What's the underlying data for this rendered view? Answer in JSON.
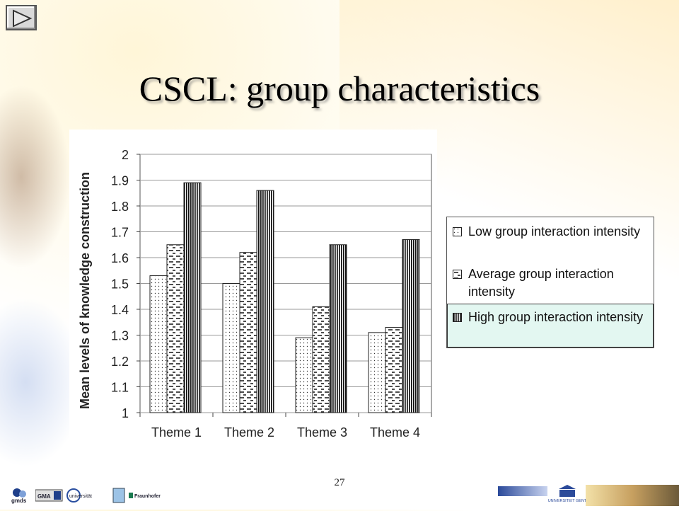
{
  "slide": {
    "title": "CSCL: group characteristics",
    "page_number": "27"
  },
  "legend": {
    "low": "Low group interaction intensity",
    "average": "Average group interaction intensity",
    "high": "High group interaction intensity"
  },
  "footer": {
    "logos_left": [
      "gmds",
      "GMA",
      "universität",
      "Fraunhofer"
    ],
    "logo_right": "UNIVERSITEIT GENT"
  },
  "nav": {
    "button_icon": "play-triangle-icon"
  },
  "chart_data": {
    "type": "bar",
    "title": "",
    "xlabel": "",
    "ylabel": "Mean levels of knowledge construction",
    "ylim": [
      1,
      2
    ],
    "yticks": [
      "1",
      "1.1",
      "1.2",
      "1.3",
      "1.4",
      "1.5",
      "1.6",
      "1.7",
      "1.8",
      "1.9",
      "2"
    ],
    "categories": [
      "Theme 1",
      "Theme 2",
      "Theme 3",
      "Theme 4"
    ],
    "series": [
      {
        "name": "Low group interaction intensity",
        "pattern": "dotted",
        "values": [
          1.53,
          1.5,
          1.29,
          1.31
        ]
      },
      {
        "name": "Average group interaction intensity",
        "pattern": "dashed",
        "values": [
          1.65,
          1.62,
          1.41,
          1.33
        ]
      },
      {
        "name": "High group interaction intensity",
        "pattern": "vertical-stripes",
        "values": [
          1.89,
          1.86,
          1.65,
          1.67
        ]
      }
    ],
    "grid": true,
    "legend_position": "right"
  }
}
